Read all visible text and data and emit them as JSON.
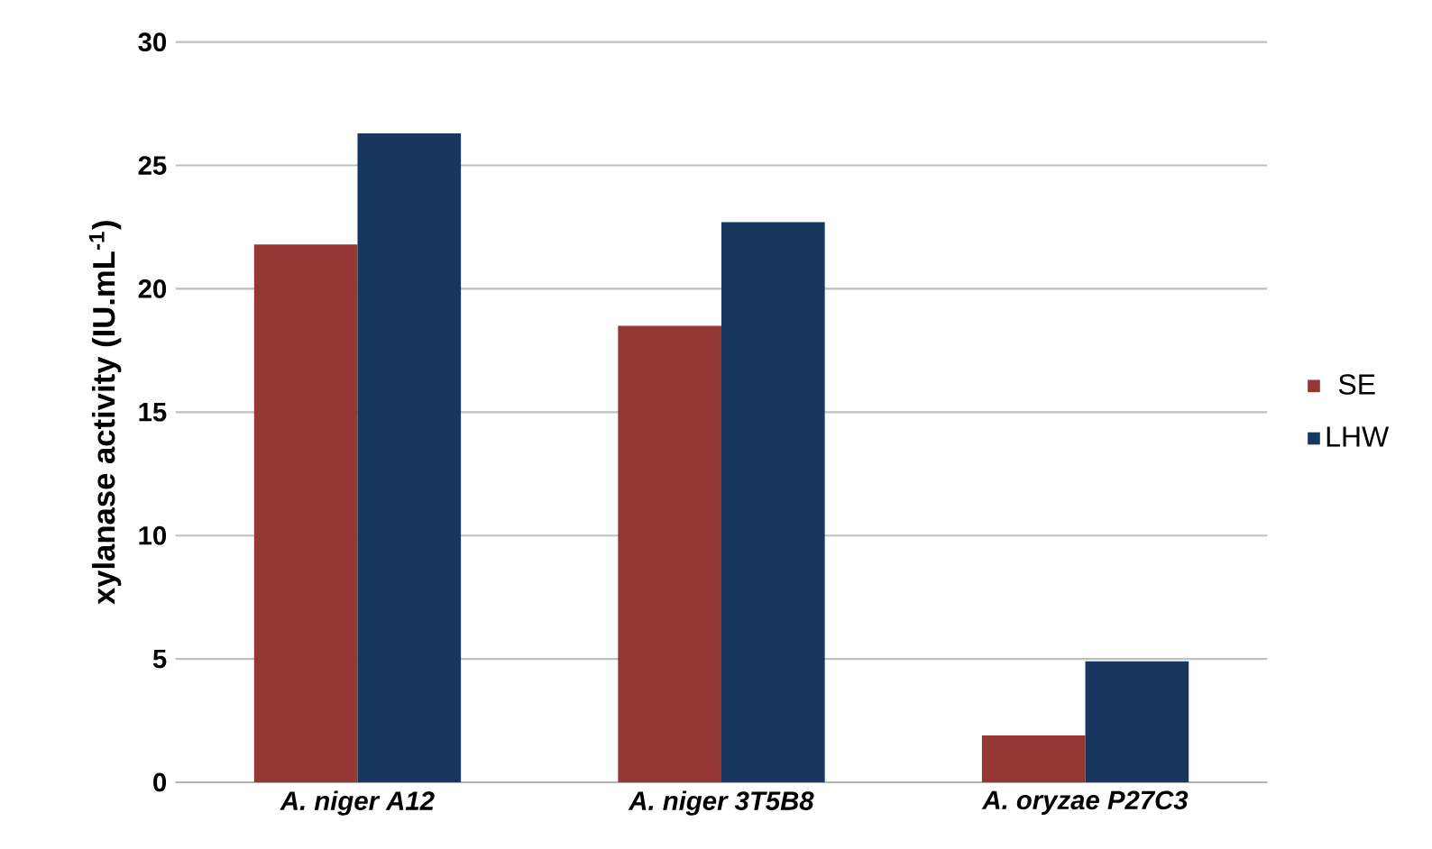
{
  "chart_data": {
    "type": "bar",
    "ylabel": "xylanase activity (IU.mL$^{-1}$)",
    "categories": [
      "A. niger A12",
      "A. niger 3T5B8",
      "A. oryzae P27C3"
    ],
    "series": [
      {
        "name": "SE",
        "color": "#953735",
        "values": [
          21.8,
          18.5,
          1.9
        ]
      },
      {
        "name": "LHW",
        "color": "#17375e",
        "values": [
          26.3,
          22.7,
          4.9
        ]
      }
    ],
    "ylim": [
      0,
      30
    ],
    "yticks": [
      0,
      5,
      10,
      15,
      20,
      25,
      30
    ],
    "grid": "y",
    "legend": "right"
  }
}
